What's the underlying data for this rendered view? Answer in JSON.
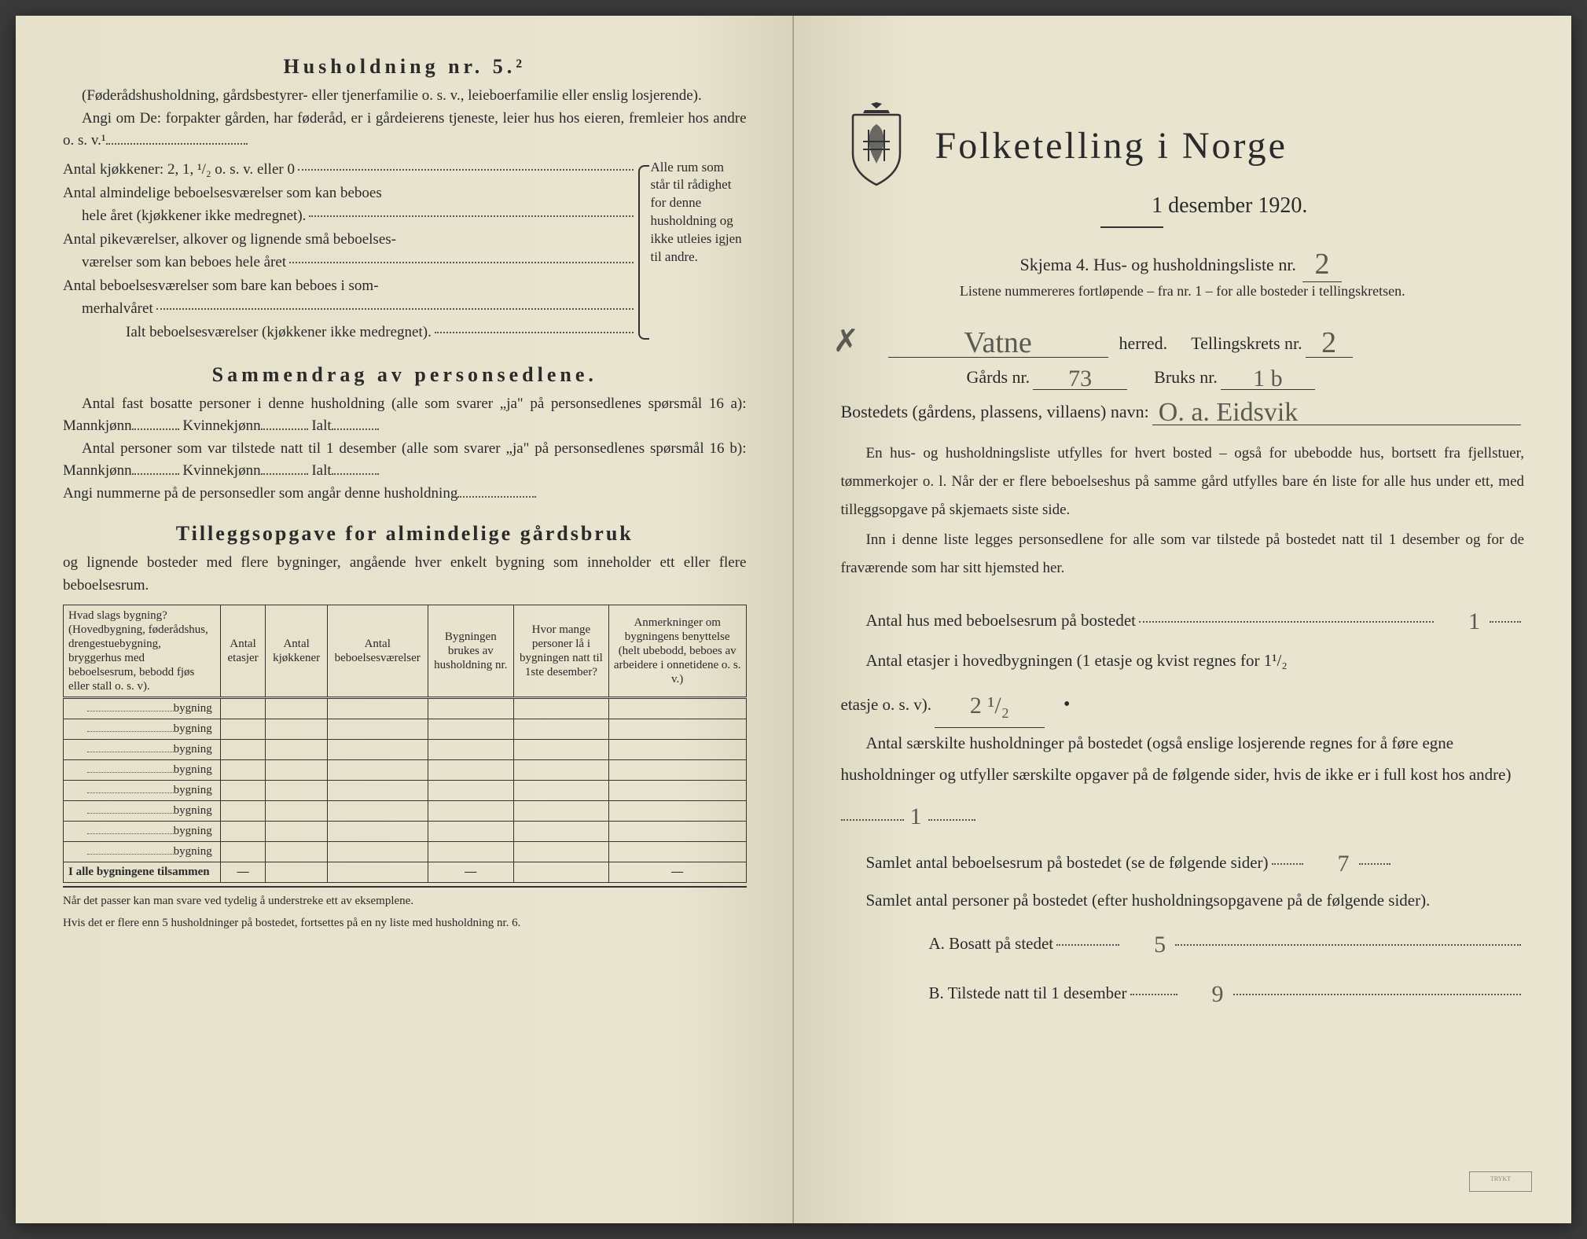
{
  "left": {
    "h5_title": "Husholdning nr. 5.²",
    "h5_sub": "(Føderådshusholdning, gårdsbestyrer- eller tjenerfamilie o. s. v., leieboerfamilie eller enslig losjerende).",
    "h5_angi": "Angi om De:  forpakter gården, har føderåd, er i gårdeierens tjeneste, leier hus hos eieren, fremleier hos andre o. s. v.¹",
    "kitchens": "Antal kjøkkener: 2, 1, ¹/₂ o. s. v. eller 0",
    "rooms1a": "Antal almindelige beboelsesværelser som kan beboes",
    "rooms1b": "hele året (kjøkkener ikke medregnet).",
    "rooms2a": "Antal pikeværelser, alkover og lignende små beboelses-",
    "rooms2b": "værelser som kan beboes hele året",
    "rooms3a": "Antal beboelsesværelser som bare kan beboes i som-",
    "rooms3b": "merhalvåret",
    "rooms_total": "Ialt beboelsesværelser  (kjøkkener ikke medregnet).",
    "brace_text": "Alle rum som står til rådighet for denne husholdning og ikke utleies igjen til andre.",
    "summary_title": "Sammendrag av personsedlene.",
    "summary1": "Antal fast bosatte personer i denne husholdning (alle som svarer „ja\" på personsedlenes spørsmål 16 a): Mannkjønn",
    "kvinne": "Kvinnekjønn",
    "ialt": "Ialt",
    "summary2": "Antal personer som var tilstede natt til 1 desember (alle som svarer „ja\" på personsedlenes spørsmål 16 b): Mannkjønn",
    "summary3": "Angi nummerne på de personsedler som angår denne husholdning",
    "tillegg_title": "Tilleggsopgave for almindelige gårdsbruk",
    "tillegg_sub": "og lignende bosteder med flere bygninger, angående hver enkelt bygning som inneholder ett eller flere beboelsesrum.",
    "table": {
      "headers": [
        "Hvad slags bygning?\n(Hovedbygning, føderådshus, drengestuebygning, bryggerhus med beboelsesrum, bebodd fjøs eller stall o. s. v).",
        "Antal etasjer",
        "Antal kjøkkener",
        "Antal beboelsesværelser",
        "Bygningen brukes av husholdning nr.",
        "Hvor mange personer lå i bygningen natt til 1ste desember?",
        "Anmerkninger om bygningens benyttelse (helt ubebodd, beboes av arbeidere i onnetidene o. s. v.)"
      ],
      "row_label": "bygning",
      "total_label": "I alle bygningene tilsammen",
      "row_count": 8
    },
    "footnote1": "Når det passer kan man svare ved tydelig å understreke ett av eksemplene.",
    "footnote2": "Hvis det er flere enn 5 husholdninger på bostedet, fortsettes på en ny liste med husholdning nr. 6."
  },
  "right": {
    "title": "Folketelling  i  Norge",
    "date": "1 desember 1920.",
    "skjema": "Skjema 4.   Hus- og husholdningsliste nr.",
    "skjema_val": "2",
    "listene": "Listene nummereres fortløpende – fra nr. 1 – for alle bosteder i tellingskretsen.",
    "herred_val": "Vatne",
    "herred_lbl": "herred.",
    "krets_lbl": "Tellingskrets nr.",
    "krets_val": "2",
    "gards_lbl": "Gårds nr.",
    "gards_val": "73",
    "bruks_lbl": "Bruks nr.",
    "bruks_val": "1 b",
    "bosted_lbl": "Bostedets (gårdens, plassens, villaens) navn:",
    "bosted_val": "O. a. Eidsvik",
    "instr1": "En hus- og husholdningsliste utfylles for hvert bosted – også for ubebodde hus, bortsett fra fjellstuer, tømmerkojer o. l.  Når der er flere beboelseshus på samme gård utfylles bare én liste for alle hus under ett, med tilleggsopgave på skjemaets siste side.",
    "instr2": "Inn i denne liste legges personsedlene for alle som var tilstede på bostedet natt til 1 desember og for de fraværende som har sitt hjemsted her.",
    "q1": "Antal hus med beboelsesrum på bostedet",
    "q1_val": "1",
    "q2a": "Antal etasjer i hovedbygningen (1 etasje og kvist regnes for 1¹/₂",
    "q2b": "etasje o. s. v).",
    "q2_val": "2 ¹/₂",
    "q3": "Antal særskilte husholdninger på bostedet (også enslige losjerende regnes for å føre egne husholdninger og utfyller særskilte opgaver på de følgende sider, hvis de ikke er i full kost hos andre)",
    "q3_val": "1",
    "q4": "Samlet antal beboelsesrum på bostedet (se de følgende sider)",
    "q4_val": "7",
    "q5": "Samlet antal personer på bostedet (efter husholdningsopgavene på de følgende sider).",
    "qA": "A.  Bosatt på stedet",
    "qA_val": "5",
    "qB": "B.  Tilstede natt til 1 desember",
    "qB_val": "9"
  }
}
